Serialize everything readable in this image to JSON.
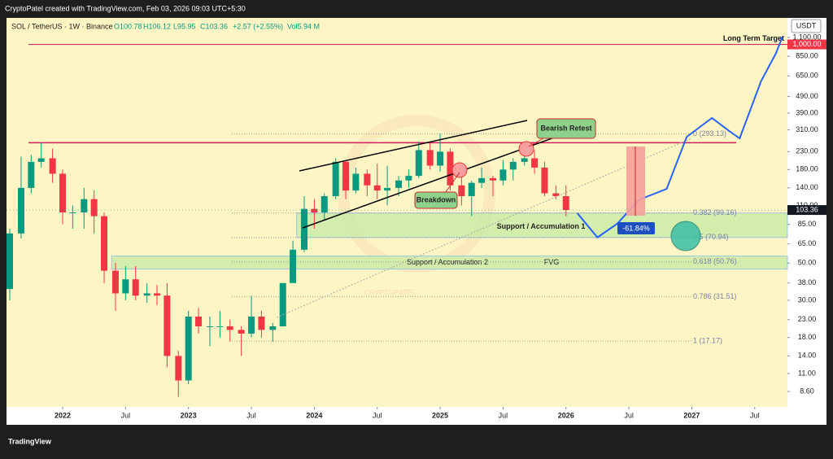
{
  "header": "CryptoPatel created with TradingView.com, Feb 03, 2026 09:03 UTC+5:30",
  "legend": {
    "symbol": "SOL / TetherUS · 1W · Binance",
    "open": "O100.78",
    "high": "H106.12",
    "low": "L95.95",
    "close": "C103.36",
    "change": "+2.57 (+2.55%)",
    "volume": "Vol5.94 M"
  },
  "footer": "TradingView",
  "chart_data": {
    "type": "candlestick",
    "currency": "USDT",
    "watermark": "CRYPTOPATEL",
    "log_scale": true,
    "xlim": [
      2021.554,
      2027.76
    ],
    "ylim": [
      6.96,
      1438
    ],
    "xticks": [
      {
        "value": 2022,
        "label": "2022"
      },
      {
        "value": 2022.5,
        "label": "Jul"
      },
      {
        "value": 2023,
        "label": "2023"
      },
      {
        "value": 2023.5,
        "label": "Jul"
      },
      {
        "value": 2024,
        "label": "2024"
      },
      {
        "value": 2024.5,
        "label": "Jul"
      },
      {
        "value": 2025,
        "label": "2025"
      },
      {
        "value": 2025.5,
        "label": "Jul"
      },
      {
        "value": 2026,
        "label": "2026"
      },
      {
        "value": 2026.5,
        "label": "Jul"
      },
      {
        "value": 2027,
        "label": "2027"
      },
      {
        "value": 2027.5,
        "label": "Jul"
      }
    ],
    "yticks": [
      {
        "value": 1100,
        "label": "1,100.00"
      },
      {
        "value": 850,
        "label": "850.00"
      },
      {
        "value": 650,
        "label": "650.00"
      },
      {
        "value": 490,
        "label": "490.00"
      },
      {
        "value": 390,
        "label": "390.00"
      },
      {
        "value": 310,
        "label": "310.00"
      },
      {
        "value": 230,
        "label": "230.00"
      },
      {
        "value": 180,
        "label": "180.00"
      },
      {
        "value": 140,
        "label": "140.00"
      },
      {
        "value": 110,
        "label": "110.00"
      },
      {
        "value": 85,
        "label": "85.00"
      },
      {
        "value": 65,
        "label": "65.00"
      },
      {
        "value": 50,
        "label": "50.00"
      },
      {
        "value": 38,
        "label": "38.00"
      },
      {
        "value": 30,
        "label": "30.00"
      },
      {
        "value": 23,
        "label": "23.00"
      },
      {
        "value": 18,
        "label": "18.00"
      },
      {
        "value": 14,
        "label": "14.00"
      },
      {
        "value": 11,
        "label": "11.00"
      },
      {
        "value": 8.6,
        "label": "8.60"
      }
    ],
    "up_color": "#089981",
    "down_color": "#f23645",
    "x": [
      2021.58,
      2021.67,
      2021.75,
      2021.83,
      2021.92,
      2022.0,
      2022.08,
      2022.17,
      2022.25,
      2022.33,
      2022.42,
      2022.5,
      2022.58,
      2022.67,
      2022.75,
      2022.83,
      2022.92,
      2023.0,
      2023.08,
      2023.17,
      2023.25,
      2023.33,
      2023.42,
      2023.5,
      2023.58,
      2023.67,
      2023.75,
      2023.83,
      2023.92,
      2024.0,
      2024.08,
      2024.17,
      2024.25,
      2024.33,
      2024.42,
      2024.5,
      2024.58,
      2024.67,
      2024.75,
      2024.83,
      2024.92,
      2025.0,
      2025.08,
      2025.17,
      2025.25,
      2025.33,
      2025.42,
      2025.5,
      2025.58,
      2025.67,
      2025.75,
      2025.83,
      2025.92,
      2026.0
    ],
    "open": [
      35,
      75,
      140,
      200,
      210,
      170,
      100,
      100,
      120,
      95,
      45,
      33,
      40,
      32,
      33,
      32,
      14,
      10,
      24,
      21,
      21,
      21,
      20,
      19,
      24,
      20,
      21,
      38,
      60,
      105,
      100,
      125,
      200,
      135,
      170,
      145,
      135,
      140,
      155,
      165,
      235,
      190,
      230,
      145,
      125,
      150,
      160,
      155,
      180,
      200,
      210,
      185,
      130,
      125
    ],
    "high": [
      80,
      215,
      220,
      260,
      240,
      180,
      110,
      140,
      135,
      100,
      50,
      48,
      48,
      38,
      37,
      38,
      15,
      26,
      27,
      24,
      26,
      23,
      21,
      32,
      26,
      22,
      38,
      68,
      125,
      120,
      130,
      210,
      205,
      185,
      180,
      195,
      190,
      165,
      180,
      265,
      265,
      295,
      240,
      180,
      155,
      185,
      165,
      205,
      210,
      255,
      235,
      200,
      145,
      145
    ],
    "low": [
      30,
      70,
      130,
      185,
      150,
      85,
      80,
      80,
      75,
      38,
      26,
      30,
      30,
      29,
      28,
      12,
      8,
      9.5,
      19,
      16,
      18,
      17,
      14,
      18,
      18,
      17,
      21,
      38,
      58,
      80,
      90,
      120,
      120,
      130,
      125,
      120,
      110,
      125,
      140,
      160,
      180,
      175,
      135,
      110,
      95,
      140,
      125,
      145,
      155,
      190,
      170,
      125,
      120,
      95
    ],
    "close": [
      75,
      140,
      200,
      210,
      170,
      100,
      100,
      120,
      95,
      45,
      33,
      40,
      32,
      33,
      32,
      14,
      10,
      24,
      21,
      21,
      21,
      20,
      19,
      24,
      20,
      21,
      38,
      60,
      105,
      100,
      125,
      200,
      135,
      170,
      145,
      135,
      140,
      155,
      165,
      235,
      190,
      230,
      145,
      125,
      150,
      160,
      155,
      180,
      200,
      210,
      185,
      130,
      125,
      103.36
    ],
    "projection": {
      "color": "#2962ff",
      "x": [
        2026.09,
        2026.25,
        2026.41,
        2026.58,
        2026.8,
        2026.96,
        2027.16,
        2027.29,
        2027.38,
        2027.55,
        2027.67,
        2027.72
      ],
      "values": [
        99,
        71,
        86,
        119,
        138,
        282,
        365,
        308,
        276,
        603,
        890,
        1111
      ]
    },
    "current_price": {
      "value": 103.36,
      "label": "103.36"
    },
    "target": {
      "value": 1000,
      "label": "1,000.00",
      "text": "Long Term Target"
    },
    "resistance": 260,
    "fib_levels": [
      {
        "value": 293.13,
        "label": "0 (293.13)"
      },
      {
        "value": 99.16,
        "label": "0.382 (99.16)"
      },
      {
        "value": 70.94,
        "label": "0.5 (70.94)"
      },
      {
        "value": 50.76,
        "label": "0.618 (50.76)"
      },
      {
        "value": 31.51,
        "label": "0.786 (31.51)"
      },
      {
        "value": 17.17,
        "label": "1 (17.17)"
      }
    ],
    "zone_1": {
      "x_from": 2023.86,
      "range": [
        70.94,
        99.16
      ],
      "label": "Support / Accumulation 1"
    },
    "zone_2": {
      "x_from": 2022.39,
      "range": [
        46,
        55
      ],
      "label": "Support  / Accumulation 2",
      "tag": "FVG"
    },
    "annotations": {
      "breakdown": "Breakdown",
      "retest": "Bearish Retest",
      "drop": "-61.84%"
    }
  }
}
